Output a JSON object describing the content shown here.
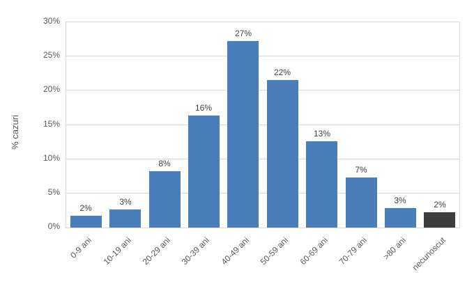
{
  "chart_data": {
    "type": "bar",
    "title": "",
    "xlabel": "",
    "ylabel": "% cazuri",
    "categories": [
      "0-9 ani",
      "10-19 ani",
      "20-29 ani",
      "30-39 ani",
      "40-49 ani",
      "50-59 ani",
      "60-69 ani",
      "70-79 ani",
      ">80 ani",
      "necunoscut"
    ],
    "values": [
      1.7,
      2.6,
      8.2,
      16.4,
      27.3,
      21.6,
      12.6,
      7.3,
      2.8,
      2.2
    ],
    "data_labels": [
      "2%",
      "3%",
      "8%",
      "16%",
      "27%",
      "22%",
      "13%",
      "7%",
      "3%",
      "2%"
    ],
    "ylim": [
      0,
      30
    ],
    "ytick_step": 5,
    "ytick_labels": [
      "0%",
      "5%",
      "10%",
      "15%",
      "20%",
      "25%",
      "30%"
    ],
    "grid": true,
    "legend": false,
    "bar_colors": [
      "#4a7ebb",
      "#4a7ebb",
      "#4a7ebb",
      "#4a7ebb",
      "#4a7ebb",
      "#4a7ebb",
      "#4a7ebb",
      "#4a7ebb",
      "#4a7ebb",
      "#3d3d3d"
    ]
  },
  "colors": {
    "bar_default": "#4a7ebb",
    "bar_unknown": "#3d3d3d",
    "gridline": "#d9d9d9",
    "axis_text": "#595959",
    "value_label_text": "#404040",
    "background": "#ffffff"
  }
}
